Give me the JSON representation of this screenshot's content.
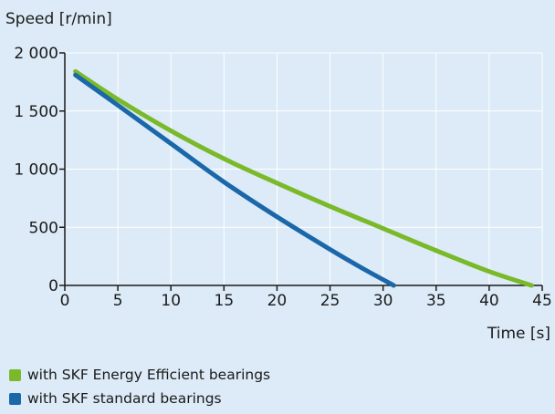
{
  "chart_data": {
    "type": "line",
    "ylabel": "Speed [r/min]",
    "xlabel": "Time [s]",
    "xlim": [
      0,
      45
    ],
    "ylim": [
      0,
      2000
    ],
    "xticks": [
      0,
      5,
      10,
      15,
      20,
      25,
      30,
      35,
      40,
      45
    ],
    "xtick_labels": [
      "0",
      "5",
      "10",
      "15",
      "20",
      "25",
      "30",
      "35",
      "40",
      "45"
    ],
    "yticks": [
      0,
      500,
      1000,
      1500,
      2000
    ],
    "ytick_labels": [
      "0",
      "500",
      "1 000",
      "1 500",
      "2 000"
    ],
    "grid": true,
    "legend_position": "bottom-left",
    "series": [
      {
        "name": "with SKF Energy Efficient bearings",
        "color": "#7ab929",
        "x": [
          1,
          5,
          10,
          15,
          20,
          25,
          30,
          35,
          40,
          44
        ],
        "y": [
          1840,
          1600,
          1330,
          1090,
          880,
          680,
          490,
          300,
          120,
          0
        ]
      },
      {
        "name": "with SKF standard bearings",
        "color": "#1a67a9",
        "x": [
          1,
          5,
          10,
          15,
          20,
          25,
          28,
          31
        ],
        "y": [
          1810,
          1550,
          1220,
          890,
          590,
          310,
          150,
          0
        ]
      }
    ]
  }
}
